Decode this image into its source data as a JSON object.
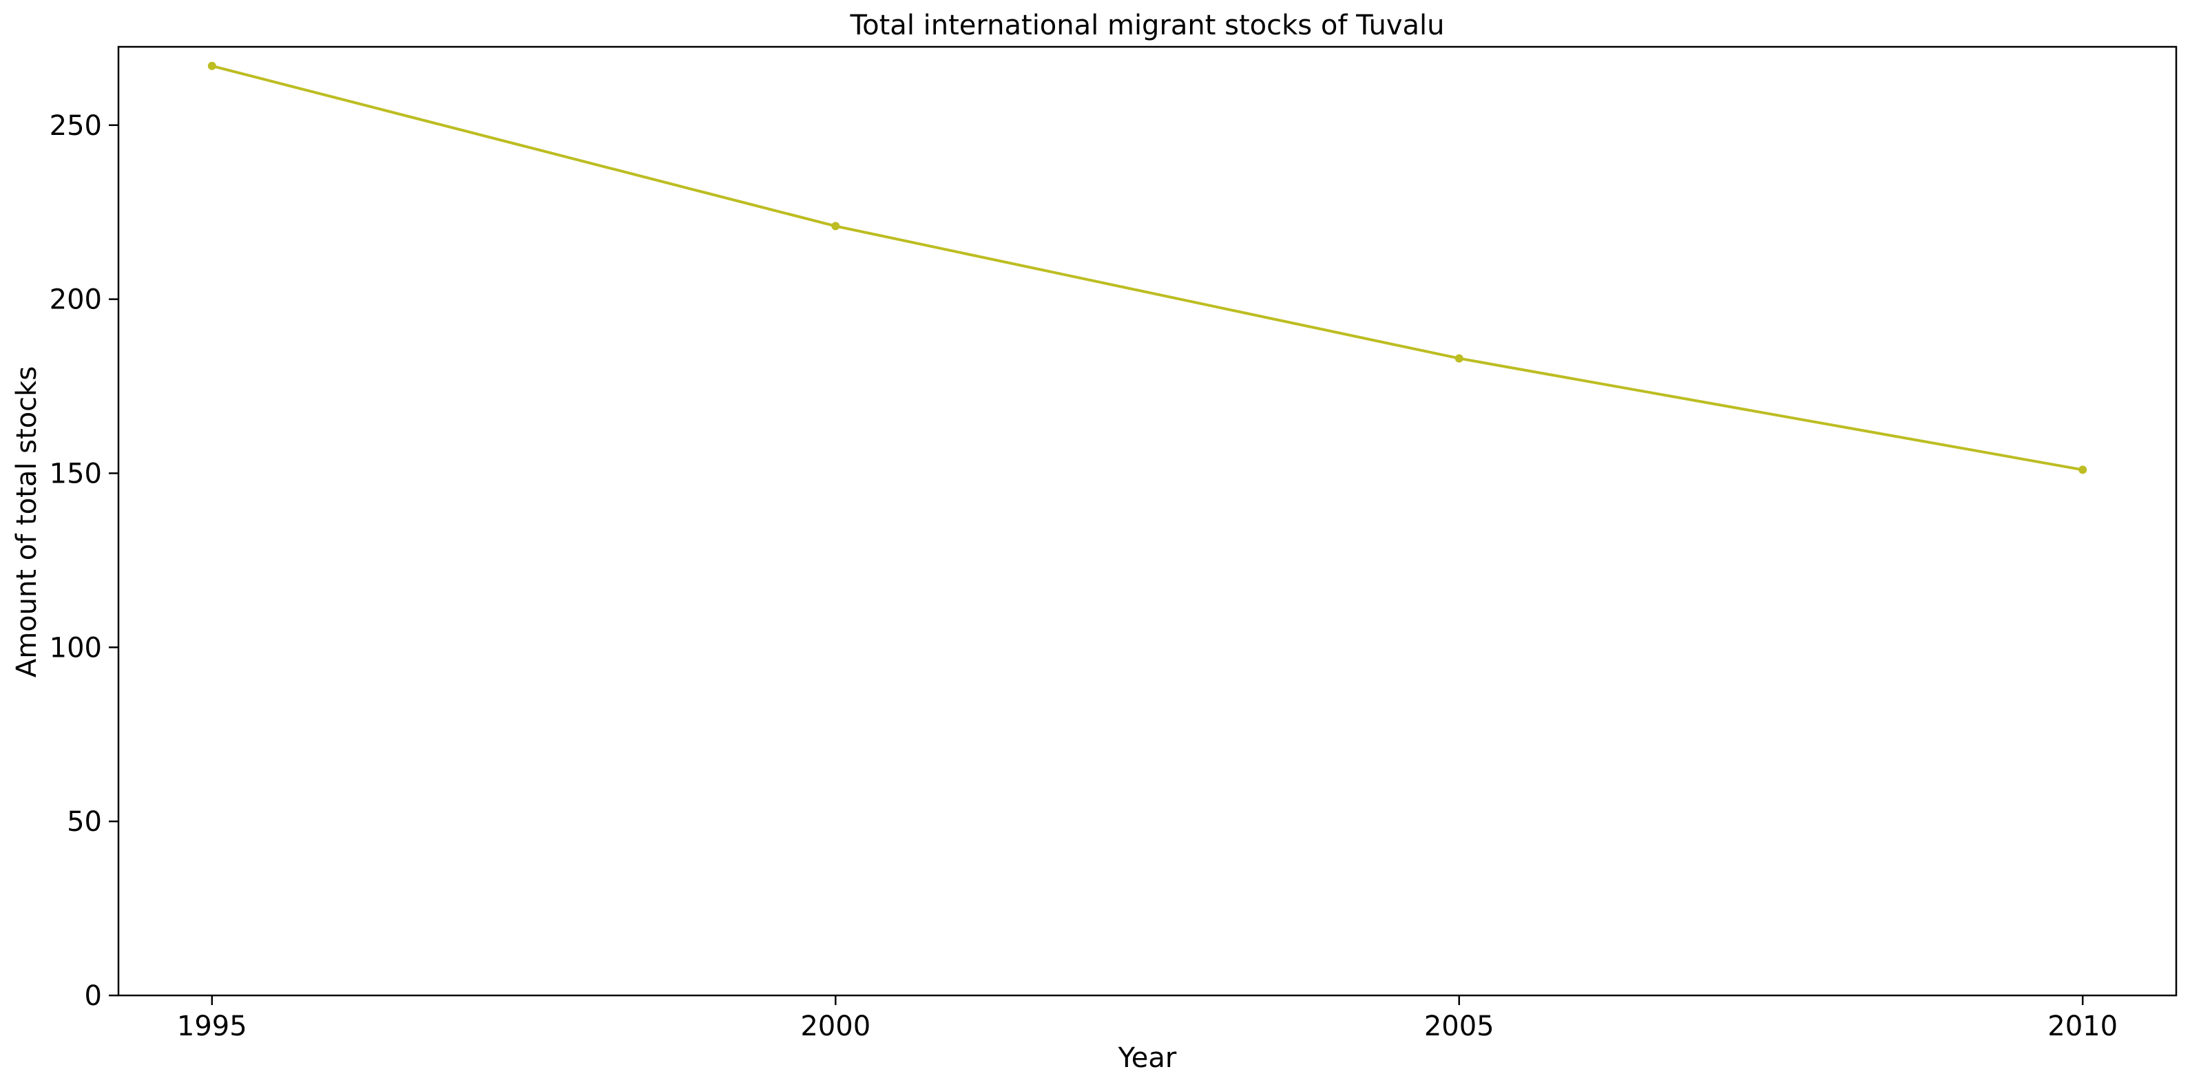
{
  "chart_data": {
    "type": "line",
    "title": "Total international migrant stocks of Tuvalu",
    "xlabel": "Year",
    "ylabel": "Amount of total stocks",
    "x": [
      1995,
      2000,
      2005,
      2010
    ],
    "series": [
      {
        "values": [
          267,
          221,
          183,
          151
        ],
        "color": "#bcbd22"
      }
    ],
    "xlim": [
      1994.25,
      2010.75
    ],
    "ylim": [
      0,
      272.5
    ],
    "xticks": [
      1995,
      2000,
      2005,
      2010
    ],
    "yticks": [
      0,
      50,
      100,
      150,
      200,
      250
    ],
    "grid": false,
    "legend": "none"
  }
}
